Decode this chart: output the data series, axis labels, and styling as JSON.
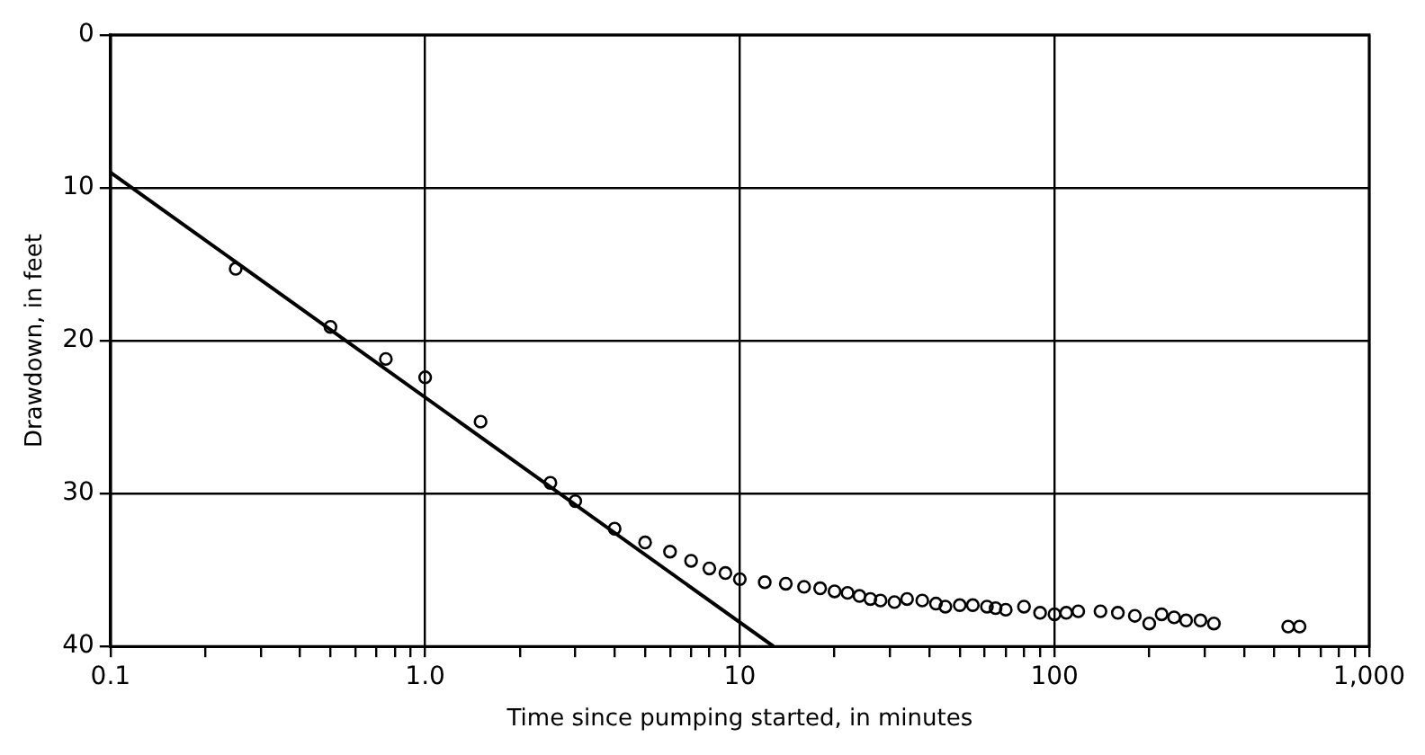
{
  "chart_data": {
    "type": "scatter",
    "xlabel": "Time since pumping started, in minutes",
    "ylabel": "Drawdown, in feet",
    "log": "x",
    "grid": true,
    "legend": false,
    "xlim": [
      0.1,
      1000
    ],
    "ylim": [
      40,
      0
    ],
    "xticks": [
      {
        "value": 0.1,
        "label": "0.1"
      },
      {
        "value": 0.2,
        "label": null
      },
      {
        "value": 0.3,
        "label": null
      },
      {
        "value": 0.4,
        "label": null
      },
      {
        "value": 0.5,
        "label": null
      },
      {
        "value": 0.6,
        "label": null
      },
      {
        "value": 0.7,
        "label": null
      },
      {
        "value": 0.8,
        "label": null
      },
      {
        "value": 0.9,
        "label": null
      },
      {
        "value": 1,
        "label": "1.0"
      },
      {
        "value": 2,
        "label": null
      },
      {
        "value": 3,
        "label": null
      },
      {
        "value": 4,
        "label": null
      },
      {
        "value": 5,
        "label": null
      },
      {
        "value": 6,
        "label": null
      },
      {
        "value": 7,
        "label": null
      },
      {
        "value": 8,
        "label": null
      },
      {
        "value": 9,
        "label": null
      },
      10,
      {
        "value": 20,
        "label": null
      },
      {
        "value": 30,
        "label": null
      },
      {
        "value": 40,
        "label": null
      },
      {
        "value": 50,
        "label": null
      },
      {
        "value": 60,
        "label": null
      },
      {
        "value": 70,
        "label": null
      },
      {
        "value": 80,
        "label": null
      },
      {
        "value": 90,
        "label": null
      },
      100,
      {
        "value": 200,
        "label": null
      },
      {
        "value": 300,
        "label": null
      },
      {
        "value": 400,
        "label": null
      },
      {
        "value": 500,
        "label": null
      },
      {
        "value": 600,
        "label": null
      },
      {
        "value": 700,
        "label": null
      },
      {
        "value": 800,
        "label": null
      },
      {
        "value": 900,
        "label": null
      },
      {
        "value": 1000,
        "label": "1,000"
      }
    ],
    "yticks": [
      0,
      10,
      20,
      30,
      40
    ],
    "series": [
      {
        "type": "scatter",
        "marker": "circle",
        "color": "#000000",
        "x": [
          0.25,
          0.5,
          0.75,
          1.0,
          1.5,
          2.5,
          3.0,
          4.0,
          5.0,
          6.0,
          7.0,
          8.0,
          9.0,
          10,
          12,
          14,
          16,
          18,
          20,
          22,
          24,
          26,
          28,
          31,
          34,
          38,
          42,
          45,
          50,
          55,
          61,
          65,
          70,
          80,
          90,
          100,
          109,
          119,
          140,
          159,
          180,
          200,
          219,
          240,
          262,
          291,
          321,
          553,
          601
        ],
        "values": [
          15.3,
          19.1,
          21.2,
          22.4,
          25.3,
          29.3,
          30.5,
          32.3,
          33.2,
          33.8,
          34.4,
          34.9,
          35.2,
          35.6,
          35.8,
          35.9,
          36.1,
          36.2,
          36.4,
          36.5,
          36.7,
          36.9,
          37.0,
          37.1,
          36.9,
          37.0,
          37.2,
          37.4,
          37.3,
          37.3,
          37.4,
          37.5,
          37.6,
          37.4,
          37.8,
          37.9,
          37.8,
          37.7,
          37.7,
          37.8,
          38.0,
          38.5,
          37.9,
          38.1,
          38.3,
          38.3,
          38.5,
          38.7,
          38.7
        ]
      },
      {
        "type": "line",
        "color": "#000000",
        "x": [
          0.1,
          12.8
        ],
        "values": [
          9.0,
          40
        ]
      }
    ]
  }
}
